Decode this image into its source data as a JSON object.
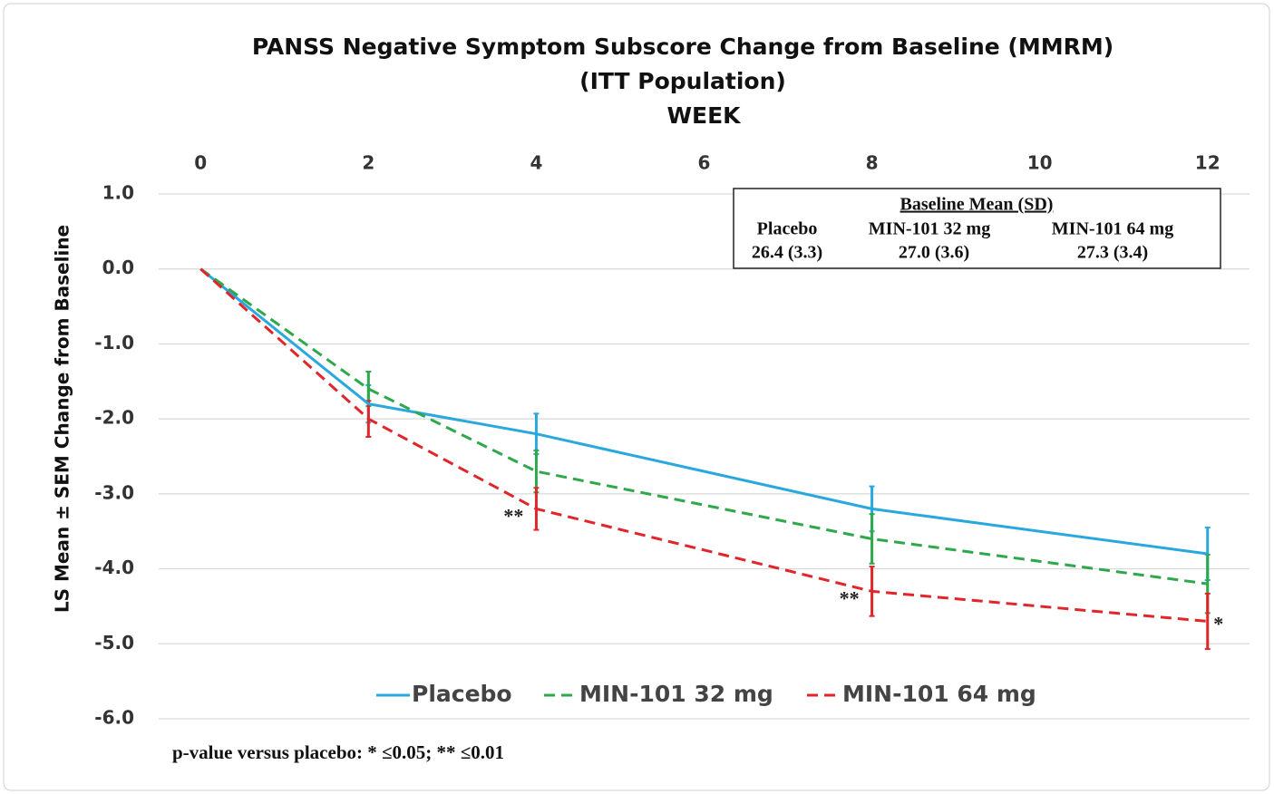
{
  "chart_data": {
    "type": "line",
    "title": "PANSS Negative Symptom Subscore Change from Baseline (MMRM)",
    "subtitle": "(ITT Population)",
    "x_label": "WEEK",
    "y_label": "LS Mean ± SEM Change from Baseline",
    "xlim": [
      -0.5,
      12.5
    ],
    "xticks": [
      0,
      2,
      4,
      6,
      8,
      10,
      12
    ],
    "ylim": [
      -6,
      1
    ],
    "yticks": [
      {
        "value": 1,
        "label": "1.0"
      },
      {
        "value": 0,
        "label": "0.0"
      },
      {
        "value": -1,
        "label": "-1.0"
      },
      {
        "value": -2,
        "label": "-2.0"
      },
      {
        "value": -3,
        "label": "-3.0"
      },
      {
        "value": -4,
        "label": "-4.0"
      },
      {
        "value": -5,
        "label": "-5.0"
      },
      {
        "value": -6,
        "label": "-6.0"
      }
    ],
    "grid": true,
    "x": [
      0,
      2,
      4,
      8,
      12
    ],
    "series": [
      {
        "name": "Placebo",
        "color": "#29a8e0",
        "dash": "solid",
        "values": [
          0,
          -1.8,
          -2.2,
          -3.2,
          -3.8
        ],
        "errors": [
          0,
          0.25,
          0.27,
          0.3,
          0.35
        ],
        "markers": [
          null,
          null,
          null,
          null,
          null
        ]
      },
      {
        "name": "MIN-101 32 mg",
        "color": "#2ea84a",
        "dash": "dashed",
        "values": [
          0,
          -1.6,
          -2.7,
          -3.6,
          -4.2
        ],
        "errors": [
          0,
          0.23,
          0.28,
          0.33,
          0.39
        ],
        "markers": [
          null,
          null,
          null,
          null,
          null
        ]
      },
      {
        "name": "MIN-101 64 mg",
        "color": "#e0262a",
        "dash": "dashed",
        "values": [
          0,
          -2.0,
          -3.2,
          -4.3,
          -4.7
        ],
        "errors": [
          0,
          0.24,
          0.28,
          0.33,
          0.37
        ],
        "markers": [
          null,
          null,
          "**",
          "**",
          "*"
        ]
      }
    ],
    "baseline_table": {
      "title": "Baseline Mean (SD)",
      "headers": [
        "Placebo",
        "MIN-101 32 mg",
        "MIN-101 64 mg"
      ],
      "values": [
        "26.4 (3.3)",
        "27.0 (3.6)",
        "27.3 (3.4)"
      ]
    },
    "footnote": "p-value versus placebo: * ≤0.05;  ** ≤0.01"
  }
}
